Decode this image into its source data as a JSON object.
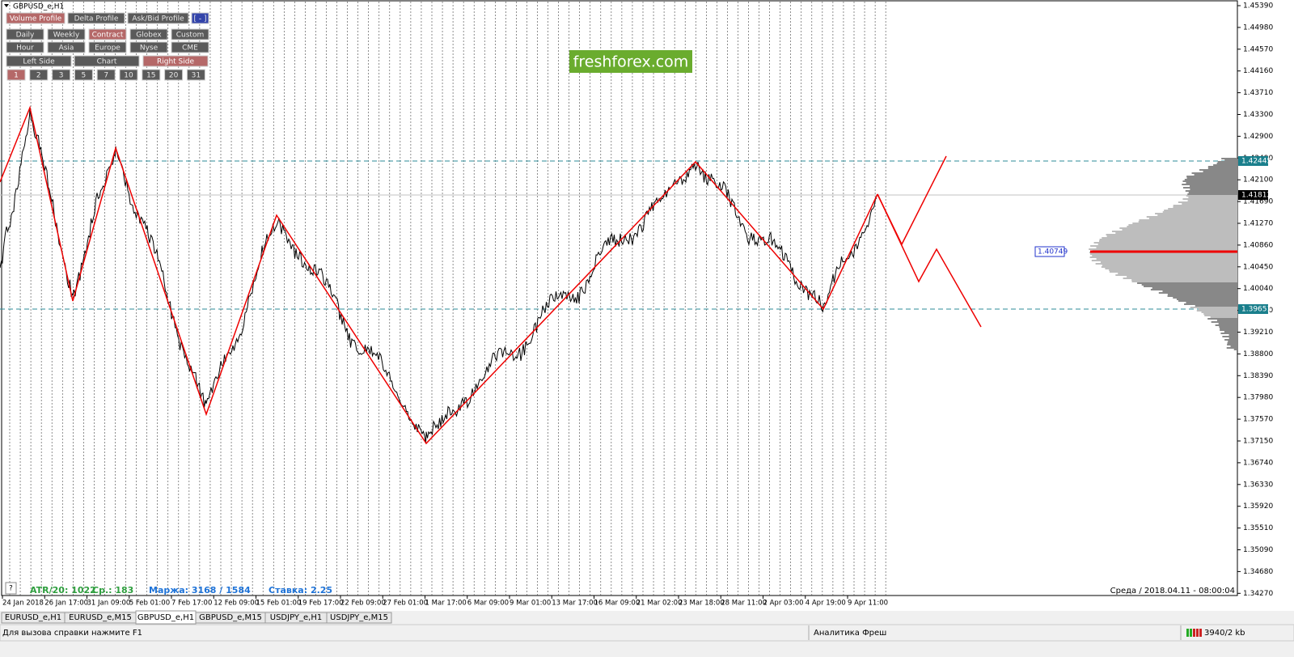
{
  "window_title": "GBPUSD_e,H1",
  "profile_buttons": [
    "Volume Profile",
    "Delta Profile",
    "Ask/Bid Profile",
    "[ - ]"
  ],
  "period_buttons": [
    "Daily",
    "Weekly",
    "Contract",
    "Globex",
    "Custom"
  ],
  "session_buttons": [
    "Hour",
    "Asia",
    "Europe",
    "Nyse",
    "CME"
  ],
  "side_buttons": [
    "Left Side",
    "Chart",
    "Right Side"
  ],
  "count_buttons": [
    "1",
    "2",
    "3",
    "5",
    "7",
    "10",
    "15",
    "20",
    "31"
  ],
  "watermark": "freshforex.com",
  "price_axis": [
    "1.45390",
    "1.44980",
    "1.44570",
    "1.44160",
    "1.43710",
    "1.43300",
    "1.42900",
    "1.42490",
    "1.42100",
    "1.41690",
    "1.41270",
    "1.40860",
    "1.40450",
    "1.40040",
    "1.39630",
    "1.39210",
    "1.38800",
    "1.38390",
    "1.37980",
    "1.37570",
    "1.37150",
    "1.36740",
    "1.36330",
    "1.35920",
    "1.35510",
    "1.35090",
    "1.34680",
    "1.34270"
  ],
  "time_axis": [
    "24 Jan 2018",
    "26 Jan 17:00",
    "31 Jan 09:00",
    "5 Feb 01:00",
    "7 Feb 17:00",
    "12 Feb 09:00",
    "15 Feb 01:00",
    "19 Feb 17:00",
    "22 Feb 09:00",
    "27 Feb 01:00",
    "1 Mar 17:00",
    "6 Mar 09:00",
    "9 Mar 01:00",
    "13 Mar 17:00",
    "16 Mar 09:00",
    "21 Mar 02:00",
    "23 Mar 18:00",
    "28 Mar 11:00",
    "2 Apr 03:00",
    "4 Apr 19:00",
    "9 Apr 11:00"
  ],
  "levels": {
    "upper": "1.42445",
    "current": "1.41812",
    "lower": "1.39651",
    "poc": "1.40749"
  },
  "indicators": {
    "atr": "ATR/20: 1022",
    "avg": "Ср.: 183",
    "margin": "Маржа: 3168 / 1584",
    "rate": "Ставка: 2.25"
  },
  "datetime": "Среда  /  2018.04.11 - 08:00:04",
  "tabs": [
    "EURUSD_e,H1",
    "EURUSD_e,M15",
    "GBPUSD_e,H1",
    "GBPUSD_e,M15",
    "USDJPY_e,H1",
    "USDJPY_e,M15"
  ],
  "status": {
    "help": "Для вызова справки нажмите F1",
    "analytics": "Аналитика Фреш",
    "traffic": "3940/2 kb"
  }
}
